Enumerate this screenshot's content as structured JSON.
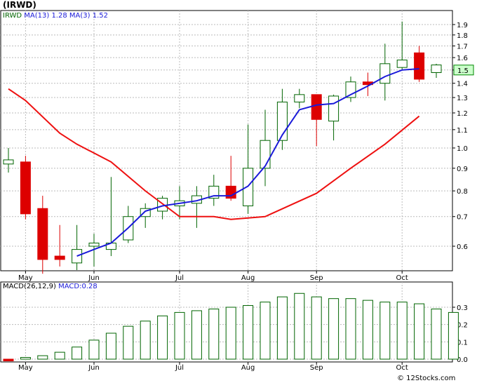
{
  "title": "(IRWD)",
  "legend": {
    "symbol": "IRWD",
    "ma13_label": "MA(13)",
    "ma13_value": "1.28",
    "ma3_label": "MA(3)",
    "ma3_value": "1.52"
  },
  "macd_legend": {
    "label": "MACD(26,12,9)",
    "value_label": "MACD:0.28"
  },
  "copyright": "© 12Stocks.com",
  "colors": {
    "up": "#006400",
    "down": "#dd0000",
    "ma13": "#1a1ad9",
    "ma3": "#ee1111",
    "grid": "#bbbbbb",
    "price_tag_bg": "#ccffcc"
  },
  "chart_data": [
    {
      "type": "candlestick",
      "title": "(IRWD)",
      "y_scale": "log",
      "ylim": [
        0.5,
        2.0
      ],
      "y_ticks": [
        0.6,
        0.7,
        0.8,
        0.9,
        1.0,
        1.1,
        1.2,
        1.3,
        1.4,
        1.5,
        1.6,
        1.7,
        1.8,
        1.9
      ],
      "y_tick_labels": [
        "0.6",
        "0.7",
        "0.8",
        "0.9",
        "1.0",
        "1.1",
        "1.2",
        "1.3",
        "1.4",
        "1.5",
        "1.6",
        "1.7",
        "1.8",
        "1.9"
      ],
      "x_labels": [
        "May",
        "Jun",
        "Jul",
        "Aug",
        "Sep",
        "Oct"
      ],
      "x_label_index": [
        1,
        5,
        10,
        14,
        18,
        23
      ],
      "current_price_label": "1.5",
      "current_price": 1.5,
      "candles": [
        {
          "o": 0.92,
          "h": 1.0,
          "l": 0.88,
          "c": 0.94
        },
        {
          "o": 0.93,
          "h": 0.96,
          "l": 0.69,
          "c": 0.71
        },
        {
          "o": 0.73,
          "h": 0.78,
          "l": 0.52,
          "c": 0.56
        },
        {
          "o": 0.57,
          "h": 0.67,
          "l": 0.54,
          "c": 0.56
        },
        {
          "o": 0.55,
          "h": 0.67,
          "l": 0.53,
          "c": 0.59
        },
        {
          "o": 0.6,
          "h": 0.64,
          "l": 0.54,
          "c": 0.61
        },
        {
          "o": 0.59,
          "h": 0.86,
          "l": 0.57,
          "c": 0.61
        },
        {
          "o": 0.62,
          "h": 0.74,
          "l": 0.61,
          "c": 0.7
        },
        {
          "o": 0.7,
          "h": 0.75,
          "l": 0.66,
          "c": 0.73
        },
        {
          "o": 0.72,
          "h": 0.78,
          "l": 0.69,
          "c": 0.77
        },
        {
          "o": 0.74,
          "h": 0.82,
          "l": 0.69,
          "c": 0.76
        },
        {
          "o": 0.75,
          "h": 0.82,
          "l": 0.66,
          "c": 0.78
        },
        {
          "o": 0.77,
          "h": 0.87,
          "l": 0.74,
          "c": 0.82
        },
        {
          "o": 0.82,
          "h": 0.96,
          "l": 0.76,
          "c": 0.77
        },
        {
          "o": 0.74,
          "h": 1.13,
          "l": 0.71,
          "c": 0.9
        },
        {
          "o": 0.9,
          "h": 1.22,
          "l": 0.82,
          "c": 1.04
        },
        {
          "o": 1.04,
          "h": 1.36,
          "l": 0.99,
          "c": 1.27
        },
        {
          "o": 1.27,
          "h": 1.36,
          "l": 1.23,
          "c": 1.32
        },
        {
          "o": 1.32,
          "h": 1.32,
          "l": 1.01,
          "c": 1.16
        },
        {
          "o": 1.15,
          "h": 1.32,
          "l": 1.04,
          "c": 1.31
        },
        {
          "o": 1.3,
          "h": 1.45,
          "l": 1.27,
          "c": 1.41
        },
        {
          "o": 1.41,
          "h": 1.48,
          "l": 1.31,
          "c": 1.39
        },
        {
          "o": 1.4,
          "h": 1.72,
          "l": 1.28,
          "c": 1.55
        },
        {
          "o": 1.52,
          "h": 1.93,
          "l": 1.5,
          "c": 1.58
        },
        {
          "o": 1.64,
          "h": 1.7,
          "l": 1.41,
          "c": 1.43
        },
        {
          "o": 1.48,
          "h": 1.55,
          "l": 1.44,
          "c": 1.54
        }
      ],
      "series": [
        {
          "name": "MA(13)",
          "x": [
            0,
            1,
            3,
            4,
            6,
            8,
            10,
            12,
            13,
            15,
            18,
            20,
            22,
            24
          ],
          "values": [
            1.36,
            1.28,
            1.08,
            1.02,
            0.93,
            0.8,
            0.7,
            0.7,
            0.69,
            0.7,
            0.79,
            0.9,
            1.02,
            1.18
          ]
        },
        {
          "name": "MA(3)",
          "x": [
            4,
            5,
            6,
            7,
            8,
            9,
            10,
            11,
            12,
            13,
            14,
            15,
            16,
            17,
            18,
            19,
            20,
            21,
            22,
            23,
            24
          ],
          "values": [
            0.57,
            0.59,
            0.61,
            0.66,
            0.72,
            0.74,
            0.75,
            0.76,
            0.78,
            0.78,
            0.82,
            0.91,
            1.07,
            1.22,
            1.25,
            1.26,
            1.32,
            1.38,
            1.45,
            1.5,
            1.51
          ]
        }
      ]
    },
    {
      "type": "bar",
      "title": "MACD(26,12,9)",
      "ylim": [
        -0.02,
        0.4
      ],
      "y_ticks": [
        0.0,
        0.1,
        0.2,
        0.3
      ],
      "y_tick_labels": [
        "0.0",
        "0.1",
        "0.2",
        "0.3"
      ],
      "x_labels": [
        "May",
        "Jun",
        "Jul",
        "Aug",
        "Sep",
        "Oct"
      ],
      "values": [
        -0.01,
        0.01,
        0.02,
        0.04,
        0.07,
        0.11,
        0.15,
        0.19,
        0.22,
        0.25,
        0.27,
        0.28,
        0.29,
        0.3,
        0.31,
        0.33,
        0.36,
        0.38,
        0.36,
        0.35,
        0.35,
        0.34,
        0.33,
        0.33,
        0.32,
        0.29,
        0.27
      ]
    }
  ]
}
